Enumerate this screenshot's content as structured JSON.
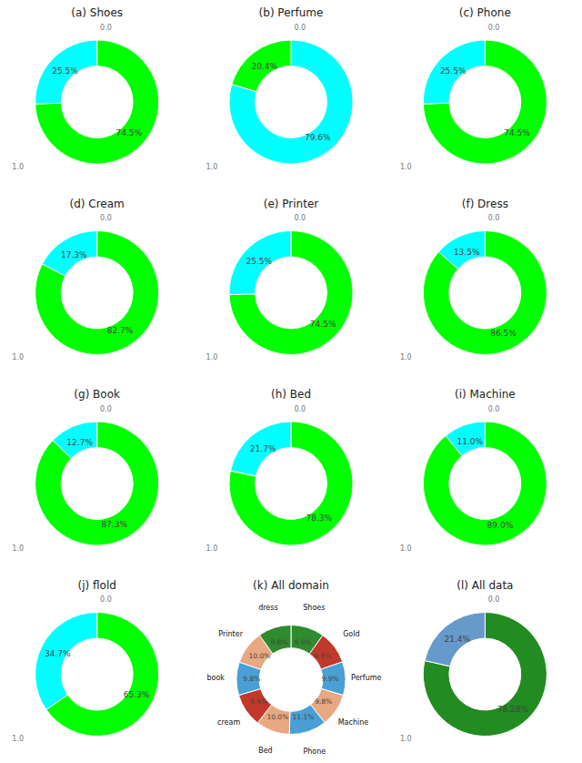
{
  "chart_data": [
    {
      "type": "donut",
      "title": "(a)  Shoes",
      "values": [
        74.5,
        25.5
      ],
      "value_labels": [
        "74.5%",
        "25.5%"
      ],
      "colors": [
        "#00ff00",
        "#00ffff"
      ],
      "data_labels": true,
      "annotations": [
        "0.0",
        "1.0"
      ]
    },
    {
      "type": "donut",
      "title": "(b)  Perfume",
      "values": [
        79.6,
        20.4
      ],
      "value_labels": [
        "79.6%",
        "20.4%"
      ],
      "colors": [
        "#00ffff",
        "#00ff00"
      ],
      "data_labels": true,
      "annotations": [
        "0.0",
        "1.0"
      ]
    },
    {
      "type": "donut",
      "title": "(c)  Phone",
      "values": [
        74.5,
        25.5
      ],
      "value_labels": [
        "74.5%",
        "25.5%"
      ],
      "colors": [
        "#00ff00",
        "#00ffff"
      ],
      "data_labels": true,
      "annotations": [
        "0.0",
        "1.0"
      ]
    },
    {
      "type": "donut",
      "title": "(d)  Cream",
      "values": [
        82.7,
        17.3
      ],
      "value_labels": [
        "82.7%",
        "17.3%"
      ],
      "colors": [
        "#00ff00",
        "#00ffff"
      ],
      "data_labels": true,
      "annotations": [
        "0.0",
        "1.0"
      ]
    },
    {
      "type": "donut",
      "title": "(e)  Printer",
      "values": [
        74.5,
        25.5
      ],
      "value_labels": [
        "74.5%",
        "25.5%"
      ],
      "colors": [
        "#00ff00",
        "#00ffff"
      ],
      "data_labels": true,
      "annotations": [
        "0.0",
        "1.0"
      ]
    },
    {
      "type": "donut",
      "title": "(f)  Dress",
      "values": [
        86.5,
        13.5
      ],
      "value_labels": [
        "86.5%",
        "13.5%"
      ],
      "colors": [
        "#00ff00",
        "#00ffff"
      ],
      "data_labels": true,
      "annotations": [
        "0.0",
        "1.0"
      ]
    },
    {
      "type": "donut",
      "title": "(g)  Book",
      "values": [
        87.3,
        12.7
      ],
      "value_labels": [
        "87.3%",
        "12.7%"
      ],
      "colors": [
        "#00ff00",
        "#00ffff"
      ],
      "data_labels": true,
      "annotations": [
        "0.0",
        "1.0"
      ]
    },
    {
      "type": "donut",
      "title": "(h)  Bed",
      "values": [
        78.3,
        21.7
      ],
      "value_labels": [
        "78.3%",
        "21.7%"
      ],
      "colors": [
        "#00ff00",
        "#00ffff"
      ],
      "data_labels": true,
      "annotations": [
        "0.0",
        "1.0"
      ]
    },
    {
      "type": "donut",
      "title": "(i)  Machine",
      "values": [
        89.0,
        11.0
      ],
      "value_labels": [
        "89.0%",
        "11.0%"
      ],
      "colors": [
        "#00ff00",
        "#00ffff"
      ],
      "data_labels": true,
      "annotations": [
        "0.0",
        "1.0"
      ]
    },
    {
      "type": "donut",
      "title": "(j)  flold",
      "values": [
        65.3,
        34.7
      ],
      "value_labels": [
        "65.3%",
        "34.7%"
      ],
      "colors": [
        "#00ff00",
        "#00ffff"
      ],
      "data_labels": true,
      "annotations": [
        "0.0",
        "1.0"
      ]
    },
    {
      "type": "donut",
      "title": "(k)  All domain",
      "categories": [
        "Shoes",
        "Gold",
        "Perfume",
        "Machine",
        "Phone",
        "Bed",
        "cream",
        "book",
        "Printer",
        "dress"
      ],
      "values": [
        9.9,
        9.8,
        9.9,
        9.8,
        11.1,
        10.0,
        9.9,
        9.8,
        10.0,
        9.8
      ],
      "value_labels": [
        "9.9%",
        "9.8%",
        "9.9%",
        "9.8%",
        "11.1%",
        "10.0%",
        "9.9%",
        "9.8%",
        "10.0%",
        "9.8%"
      ],
      "colors": [
        "#2e8b2e",
        "#c0392b",
        "#4a9fd4",
        "#e8a882",
        "#4a9fd4",
        "#e8a882",
        "#c0392b",
        "#4a9fd4",
        "#e8a882",
        "#2e8b2e"
      ],
      "data_labels": true
    },
    {
      "type": "donut",
      "title": "(l)  All data",
      "values": [
        78.28,
        21.4
      ],
      "value_labels": [
        "78.28%",
        "21.4%"
      ],
      "colors": [
        "#228B22",
        "#6699cc"
      ],
      "data_labels": true,
      "annotations": [
        "0.0",
        "1.0"
      ]
    }
  ]
}
